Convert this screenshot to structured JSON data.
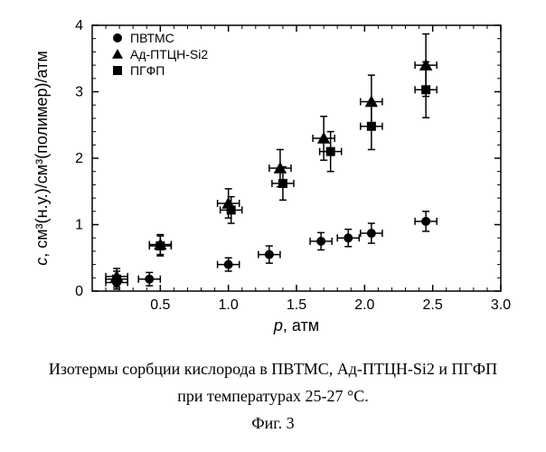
{
  "chart": {
    "type": "scatter",
    "background_color": "#ffffff",
    "axis_color": "#000000",
    "marker_color": "#000000",
    "errorbar_color": "#000000",
    "font_family_axes": "Arial",
    "axis_fontsize": 16,
    "axis_title_fontsize": 18,
    "legend_fontsize": 14,
    "xlim": [
      0,
      3.0
    ],
    "ylim": [
      0,
      4
    ],
    "xtick_major": [
      0.5,
      1.0,
      1.5,
      2.0,
      2.5,
      3.0
    ],
    "xtick_minor_step": 0.1,
    "ytick_major": [
      0,
      1,
      2,
      3,
      4
    ],
    "ytick_minor_step": 0.2,
    "x_label": "p, атм",
    "y_label": "с, см³(н.у.)/см³(полимер)/атм",
    "x_title_italic_first_char": true,
    "y_title_italic_first_char": true,
    "tick_length_major": 7,
    "tick_length_minor": 4,
    "x_err": 0.08,
    "legend": {
      "items": [
        {
          "marker": "circle",
          "label": "ПВТМС"
        },
        {
          "marker": "triangle",
          "label": "Ад-ПТЦН-Si2"
        },
        {
          "marker": "square",
          "label": "ПГФП"
        }
      ]
    },
    "series": [
      {
        "name": "ПВТМС",
        "marker": "circle",
        "r": 5,
        "points": [
          {
            "x": 0.18,
            "y": 0.13,
            "ey": 0.1
          },
          {
            "x": 0.42,
            "y": 0.18,
            "ey": 0.1
          },
          {
            "x": 1.0,
            "y": 0.4,
            "ey": 0.1
          },
          {
            "x": 1.3,
            "y": 0.55,
            "ey": 0.13
          },
          {
            "x": 1.68,
            "y": 0.75,
            "ey": 0.13
          },
          {
            "x": 1.88,
            "y": 0.8,
            "ey": 0.13
          },
          {
            "x": 2.05,
            "y": 0.87,
            "ey": 0.15
          },
          {
            "x": 2.45,
            "y": 1.05,
            "ey": 0.15
          }
        ]
      },
      {
        "name": "Ад-ПТЦН-Si2",
        "marker": "triangle",
        "r": 6,
        "points": [
          {
            "x": 0.18,
            "y": 0.22,
            "ey": 0.12
          },
          {
            "x": 0.5,
            "y": 0.7,
            "ey": 0.15
          },
          {
            "x": 1.0,
            "y": 1.32,
            "ey": 0.22
          },
          {
            "x": 1.38,
            "y": 1.85,
            "ey": 0.28
          },
          {
            "x": 1.7,
            "y": 2.3,
            "ey": 0.33
          },
          {
            "x": 2.05,
            "y": 2.85,
            "ey": 0.4
          },
          {
            "x": 2.45,
            "y": 3.4,
            "ey": 0.47
          }
        ]
      },
      {
        "name": "ПГФП",
        "marker": "square",
        "r": 5,
        "points": [
          {
            "x": 0.18,
            "y": 0.18,
            "ey": 0.12
          },
          {
            "x": 0.5,
            "y": 0.68,
            "ey": 0.15
          },
          {
            "x": 1.02,
            "y": 1.22,
            "ey": 0.2
          },
          {
            "x": 1.4,
            "y": 1.62,
            "ey": 0.25
          },
          {
            "x": 1.75,
            "y": 2.1,
            "ey": 0.3
          },
          {
            "x": 2.05,
            "y": 2.48,
            "ey": 0.35
          },
          {
            "x": 2.45,
            "y": 3.03,
            "ey": 0.42
          }
        ]
      }
    ]
  },
  "caption": {
    "line1": "Изотермы сорбции кислорода в ПВТМС, Ад-ПТЦН-Si2 и ПГФП",
    "line2": "при температурах 25-27 °С.",
    "line3": "Фиг. 3",
    "font_family": "Times New Roman",
    "fontsize": 18
  }
}
